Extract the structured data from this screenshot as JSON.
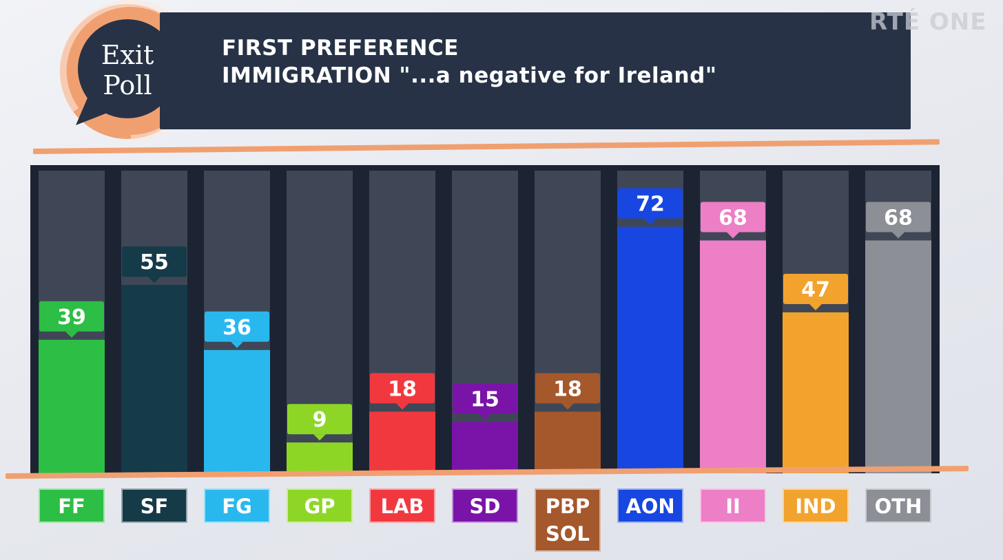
{
  "logo": {
    "line1": "Exit",
    "line2": "Poll"
  },
  "header": {
    "line1": "FIRST PREFERENCE",
    "line2": "IMMIGRATION \"...a negative for Ireland\""
  },
  "brand": "RTÉ ONE",
  "colors": {
    "header_bg": "#273246",
    "accent": "#f0a070",
    "chart_bg": "#1c2433",
    "track": "#3f4756"
  },
  "chart_data": {
    "type": "bar",
    "categories": [
      "FF",
      "SF",
      "FG",
      "GP",
      "LAB",
      "SD",
      "PBP SOL",
      "AON",
      "II",
      "IND",
      "OTH"
    ],
    "values": [
      39,
      55,
      36,
      9,
      18,
      15,
      18,
      72,
      68,
      47,
      68
    ],
    "colors": [
      "#2dbe45",
      "#153a48",
      "#29b8ee",
      "#8ed626",
      "#f2383f",
      "#7a14a8",
      "#a5582b",
      "#1747e0",
      "#ec7fc6",
      "#f2a32e",
      "#8d8f96"
    ],
    "ylim": [
      0,
      90
    ],
    "title": "FIRST PREFERENCE",
    "subtitle": "IMMIGRATION \"...a negative for Ireland\"",
    "xlabel": "",
    "ylabel": "",
    "grid": false,
    "data_labels": true
  }
}
